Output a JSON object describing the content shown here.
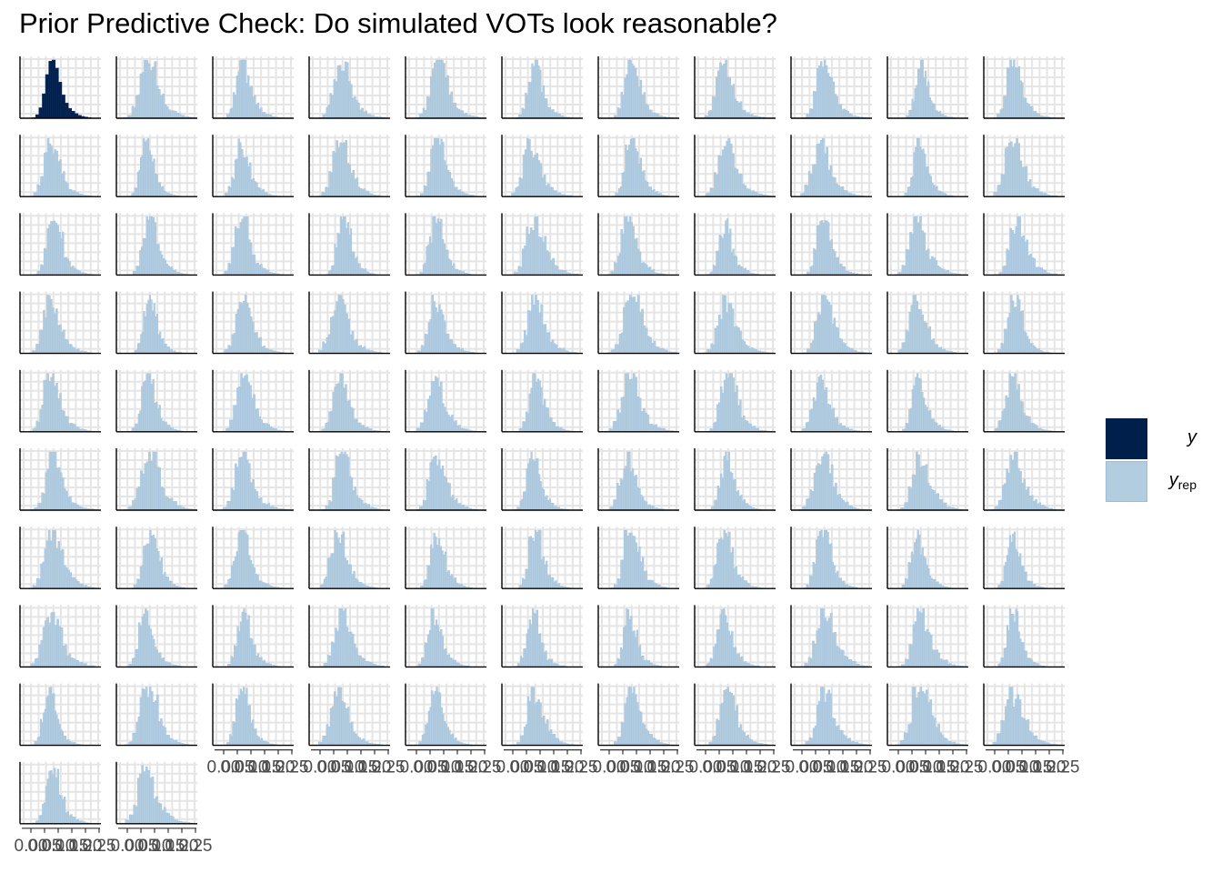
{
  "chart_data": {
    "type": "histogram-facets",
    "title": "Prior Predictive Check: Do simulated VOTs look reasonable?",
    "xlabel": "",
    "ylabel": "",
    "xlim": [
      0,
      0.25
    ],
    "x_tick_labels": [
      "0.00",
      "0.05",
      "0.10",
      "0.15",
      "0.20",
      "0.25"
    ],
    "grid": true,
    "facet_count": 101,
    "facet_columns": 11,
    "legend_position": "right",
    "colors": {
      "y": "#011f4b",
      "yrep": "#b3cde0"
    },
    "series": [
      {
        "name": "y",
        "description_of_panel": "first panel (observed data)"
      },
      {
        "name": "y_rep",
        "description_of_panel": "remaining 100 panels (simulated draws)"
      }
    ],
    "typical_distribution": {
      "bins": [
        0.0,
        0.0125,
        0.025,
        0.0375,
        0.05,
        0.0625,
        0.075,
        0.0875,
        0.1,
        0.1125,
        0.125,
        0.1375,
        0.15,
        0.1625,
        0.175,
        0.1875,
        0.2,
        0.2125,
        0.225,
        0.2375
      ],
      "relative_counts": [
        0.0,
        0.01,
        0.06,
        0.18,
        0.42,
        0.75,
        0.98,
        1.0,
        0.86,
        0.62,
        0.4,
        0.26,
        0.17,
        0.12,
        0.08,
        0.05,
        0.03,
        0.02,
        0.01,
        0.0
      ]
    }
  },
  "legend": {
    "y_label": "y",
    "yrep_label_main": "y",
    "yrep_label_sub": "rep"
  }
}
